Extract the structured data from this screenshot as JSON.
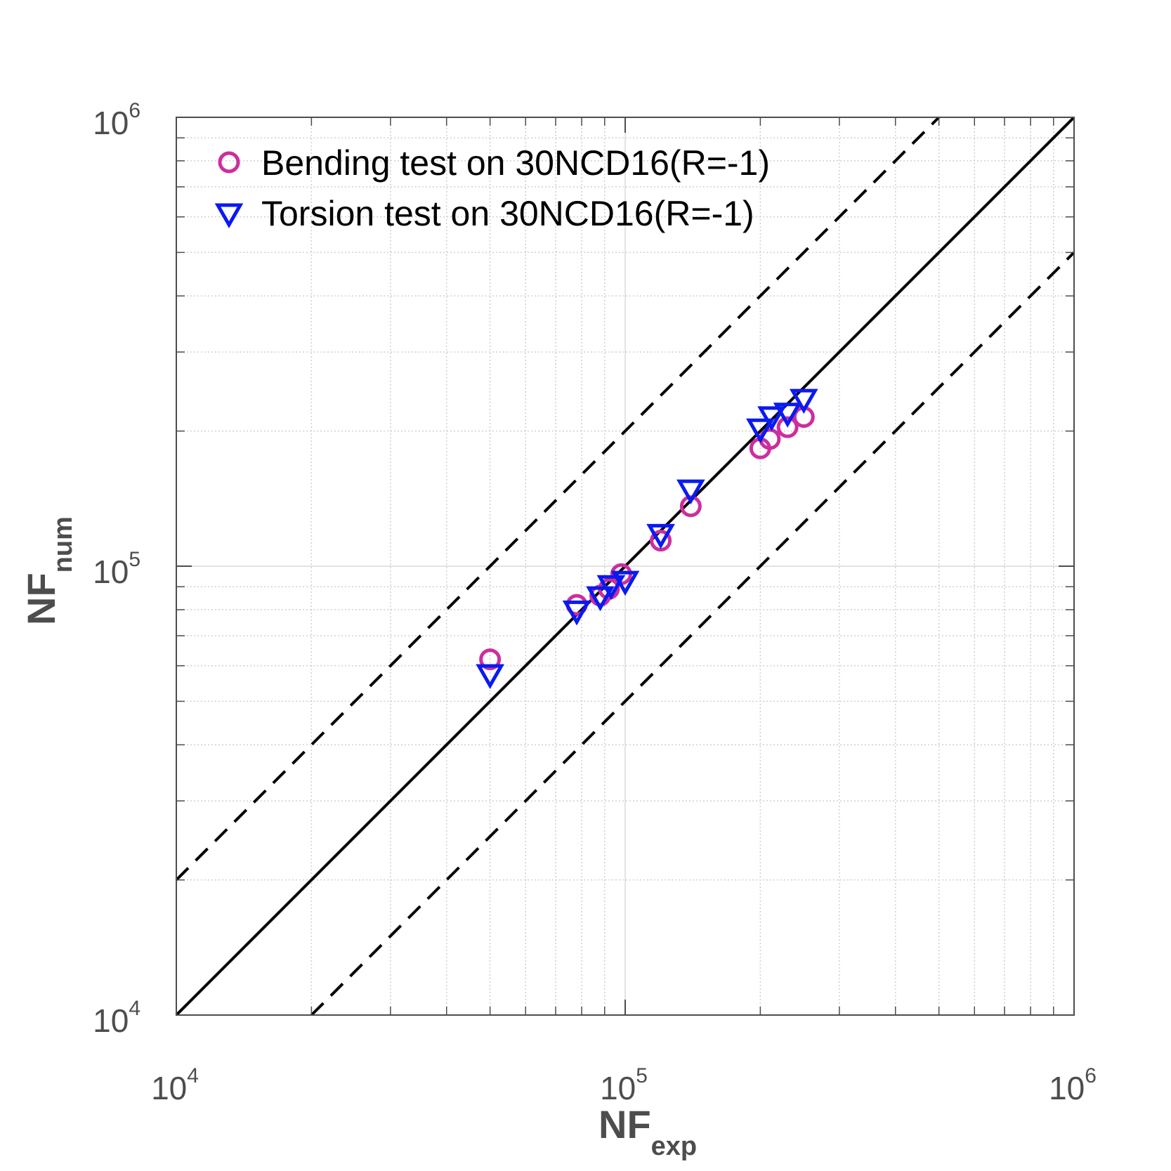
{
  "chart_data": {
    "type": "scatter",
    "scale": "log-log",
    "grid": true,
    "legend_position": "top-left",
    "xlim": [
      10000,
      1000000
    ],
    "ylim": [
      10000,
      1000000
    ],
    "xlabel": {
      "main": "NF",
      "sub": "exp"
    },
    "ylabel": {
      "main": "NF",
      "sub": "num"
    },
    "x_ticks": [
      {
        "value": 10000,
        "base": "10",
        "exp": "4"
      },
      {
        "value": 100000,
        "base": "10",
        "exp": "5"
      },
      {
        "value": 1000000,
        "base": "10",
        "exp": "6"
      }
    ],
    "y_ticks": [
      {
        "value": 10000,
        "base": "10",
        "exp": "4"
      },
      {
        "value": 100000,
        "base": "10",
        "exp": "5"
      },
      {
        "value": 1000000,
        "base": "10",
        "exp": "6"
      }
    ],
    "reference_lines": [
      {
        "style": "solid",
        "factor": 1
      },
      {
        "style": "dashed",
        "factor": 2
      },
      {
        "style": "dashed",
        "factor": 0.5
      }
    ],
    "series": [
      {
        "name": "Bending test on 30NCD16(R=-1)",
        "marker": "circle",
        "color": "#cc2e9e",
        "points": [
          {
            "x": 50000,
            "y": 62000
          },
          {
            "x": 78000,
            "y": 82000
          },
          {
            "x": 88000,
            "y": 86000
          },
          {
            "x": 92000,
            "y": 89000
          },
          {
            "x": 98000,
            "y": 96000
          },
          {
            "x": 120000,
            "y": 114000
          },
          {
            "x": 140000,
            "y": 136000
          },
          {
            "x": 200000,
            "y": 183000
          },
          {
            "x": 210000,
            "y": 192000
          },
          {
            "x": 230000,
            "y": 204000
          },
          {
            "x": 250000,
            "y": 215000
          }
        ]
      },
      {
        "name": "Torsion test on 30NCD16(R=-1)",
        "marker": "triangle-down",
        "color": "#0a1af0",
        "points": [
          {
            "x": 50000,
            "y": 57000
          },
          {
            "x": 78000,
            "y": 79000
          },
          {
            "x": 88000,
            "y": 85000
          },
          {
            "x": 93000,
            "y": 90000
          },
          {
            "x": 100000,
            "y": 92000
          },
          {
            "x": 120000,
            "y": 117000
          },
          {
            "x": 140000,
            "y": 147000
          },
          {
            "x": 200000,
            "y": 201000
          },
          {
            "x": 212000,
            "y": 214000
          },
          {
            "x": 230000,
            "y": 218000
          },
          {
            "x": 250000,
            "y": 234000
          }
        ]
      }
    ]
  }
}
